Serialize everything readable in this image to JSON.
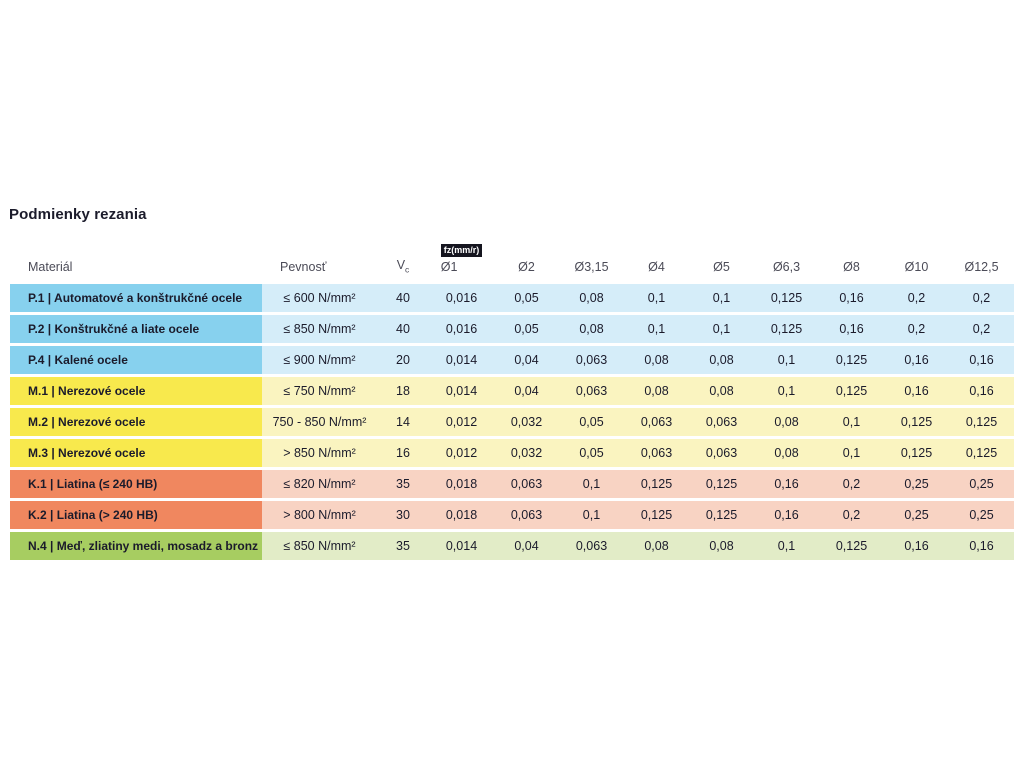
{
  "title": "Podmienky rezania",
  "colors": {
    "text_dark": "#1b1b2b",
    "header_text": "#4b4b57",
    "badge_bg": "#15151f",
    "badge_text": "#ffffff",
    "groups": {
      "P": {
        "label_bg": "#87d1ee",
        "row_bg": "#d5edf9"
      },
      "M": {
        "label_bg": "#f8e94d",
        "row_bg": "#faf4c0"
      },
      "K": {
        "label_bg": "#f0875f",
        "row_bg": "#f8d3c3"
      },
      "N": {
        "label_bg": "#a7cd61",
        "row_bg": "#e2ecc7"
      }
    }
  },
  "table": {
    "badge": "fz(mm/r)",
    "headers": {
      "material": "Materiál",
      "strength": "Pevnosť",
      "vc_base": "V",
      "vc_sub": "c",
      "diameters": [
        "Ø1",
        "Ø2",
        "Ø3,15",
        "Ø4",
        "Ø5",
        "Ø6,3",
        "Ø8",
        "Ø10",
        "Ø12,5"
      ]
    },
    "rows": [
      {
        "group": "P",
        "material": "P.1 | Automatové a konštrukčné ocele",
        "strength": "≤ 600 N/mm²",
        "vc": "40",
        "fz": [
          "0,016",
          "0,05",
          "0,08",
          "0,1",
          "0,1",
          "0,125",
          "0,16",
          "0,2",
          "0,2"
        ]
      },
      {
        "group": "P",
        "material": "P.2 | Konštrukčné a liate ocele",
        "strength": "≤ 850 N/mm²",
        "vc": "40",
        "fz": [
          "0,016",
          "0,05",
          "0,08",
          "0,1",
          "0,1",
          "0,125",
          "0,16",
          "0,2",
          "0,2"
        ]
      },
      {
        "group": "P",
        "material": "P.4 | Kalené ocele",
        "strength": "≤ 900 N/mm²",
        "vc": "20",
        "fz": [
          "0,014",
          "0,04",
          "0,063",
          "0,08",
          "0,08",
          "0,1",
          "0,125",
          "0,16",
          "0,16"
        ]
      },
      {
        "group": "M",
        "material": "M.1 | Nerezové ocele",
        "strength": "≤ 750 N/mm²",
        "vc": "18",
        "fz": [
          "0,014",
          "0,04",
          "0,063",
          "0,08",
          "0,08",
          "0,1",
          "0,125",
          "0,16",
          "0,16"
        ]
      },
      {
        "group": "M",
        "material": "M.2 | Nerezové ocele",
        "strength": "750 - 850 N/mm²",
        "vc": "14",
        "fz": [
          "0,012",
          "0,032",
          "0,05",
          "0,063",
          "0,063",
          "0,08",
          "0,1",
          "0,125",
          "0,125"
        ]
      },
      {
        "group": "M",
        "material": "M.3 | Nerezové ocele",
        "strength": "> 850 N/mm²",
        "vc": "16",
        "fz": [
          "0,012",
          "0,032",
          "0,05",
          "0,063",
          "0,063",
          "0,08",
          "0,1",
          "0,125",
          "0,125"
        ]
      },
      {
        "group": "K",
        "material": "K.1 | Liatina (≤ 240 HB)",
        "strength": "≤ 820 N/mm²",
        "vc": "35",
        "fz": [
          "0,018",
          "0,063",
          "0,1",
          "0,125",
          "0,125",
          "0,16",
          "0,2",
          "0,25",
          "0,25"
        ]
      },
      {
        "group": "K",
        "material": "K.2 | Liatina (> 240 HB)",
        "strength": "> 800 N/mm²",
        "vc": "30",
        "fz": [
          "0,018",
          "0,063",
          "0,1",
          "0,125",
          "0,125",
          "0,16",
          "0,2",
          "0,25",
          "0,25"
        ]
      },
      {
        "group": "N",
        "material": "N.4 | Meď, zliatiny medi, mosadz a bronz",
        "strength": "≤ 850 N/mm²",
        "vc": "35",
        "fz": [
          "0,014",
          "0,04",
          "0,063",
          "0,08",
          "0,08",
          "0,1",
          "0,125",
          "0,16",
          "0,16"
        ]
      }
    ]
  }
}
